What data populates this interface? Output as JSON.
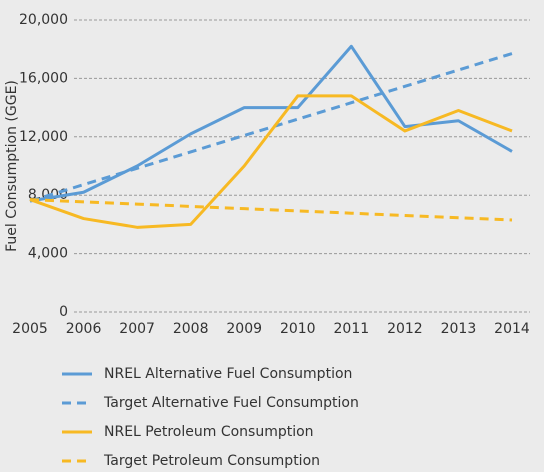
{
  "chart_data": {
    "type": "line",
    "y_label": "Fuel Consumption (GGE)",
    "categories": [
      "2005",
      "2006",
      "2007",
      "2008",
      "2009",
      "2010",
      "2011",
      "2012",
      "2013",
      "2014"
    ],
    "series": [
      {
        "name": "NREL Alternative Fuel Consumption",
        "color": "#5b9bd5",
        "line_style": "solid",
        "values": [
          7600,
          8200,
          10000,
          12200,
          14000,
          14000,
          18200,
          12700,
          13100,
          11000
        ]
      },
      {
        "name": "Target Alternative Fuel Consumption",
        "color": "#5b9bd5",
        "line_style": "dashed",
        "values": [
          7600,
          8722,
          9844,
          10967,
          12089,
          13211,
          14333,
          15456,
          16578,
          17700
        ]
      },
      {
        "name": "NREL Petroleum Consumption",
        "color": "#f7b923",
        "line_style": "solid",
        "values": [
          7700,
          6400,
          5800,
          6000,
          10000,
          14800,
          14800,
          12400,
          13800,
          12400
        ]
      },
      {
        "name": "Target Petroleum Consumption",
        "color": "#f7b923",
        "line_style": "dashed",
        "values": [
          7700,
          7544,
          7389,
          7233,
          7078,
          6922,
          6767,
          6611,
          6456,
          6300
        ]
      }
    ],
    "ylim": [
      0,
      20000
    ],
    "yticks": [
      {
        "value": 0,
        "label": "0"
      },
      {
        "value": 4000,
        "label": "4,000"
      },
      {
        "value": 8000,
        "label": "8,000"
      },
      {
        "value": 12000,
        "label": "12,000"
      },
      {
        "value": 16000,
        "label": "16,000"
      },
      {
        "value": 20000,
        "label": "20,000"
      }
    ],
    "grid": true
  }
}
